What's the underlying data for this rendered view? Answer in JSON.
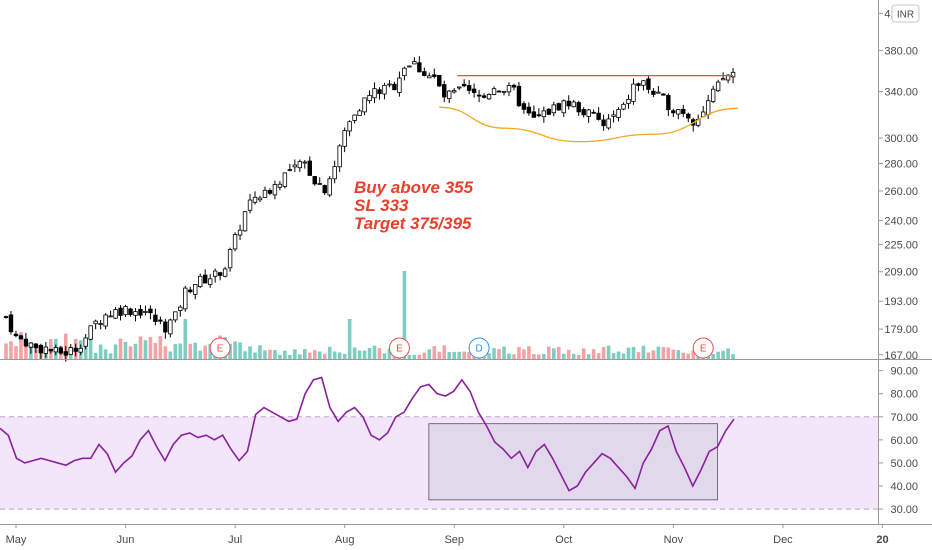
{
  "currency_badge": "INR",
  "annotation": {
    "lines": [
      "Buy above 355",
      "SL 333",
      "Target 375/395"
    ],
    "color": "#e8402d"
  },
  "colors": {
    "up": "#ffffff",
    "down": "#000000",
    "volume_up": "#7ecdc2",
    "volume_down": "#f2a3a6",
    "resistance": "#f04747",
    "cup_curve": "#f5a623",
    "rsi_line": "#8b1fa0",
    "rsi_band": "#f3e6fb",
    "rsi_box": "#dcd3e6"
  },
  "chart_data": [
    {
      "type": "candlestick",
      "title": "",
      "yscale": "log",
      "y_ticks": [
        167,
        179,
        193,
        209,
        225,
        240,
        260,
        280,
        300,
        340,
        380,
        420
      ],
      "y_tick_labels": [
        "167.00",
        "179.00",
        "193.00",
        "209.00",
        "225.00",
        "240.00",
        "260.00",
        "280.00",
        "300.00",
        "340.00",
        "380.00",
        "420.00"
      ],
      "x_ticks": [
        "May",
        "Jun",
        "Jul",
        "Aug",
        "Sep",
        "Oct",
        "Nov",
        "Dec",
        "20"
      ],
      "x_tick_day_index": [
        0,
        22,
        44,
        66,
        88,
        110,
        132,
        154,
        174
      ],
      "close_path": [
        [
          0,
          185
        ],
        [
          2,
          175
        ],
        [
          4,
          173
        ],
        [
          6,
          170
        ],
        [
          8,
          170
        ],
        [
          10,
          168
        ],
        [
          12,
          168
        ],
        [
          14,
          170
        ],
        [
          16,
          175
        ],
        [
          18,
          182
        ],
        [
          20,
          186
        ],
        [
          22,
          188
        ],
        [
          24,
          189
        ],
        [
          26,
          188
        ],
        [
          28,
          188
        ],
        [
          30,
          183
        ],
        [
          32,
          180
        ],
        [
          34,
          185
        ],
        [
          36,
          198
        ],
        [
          38,
          203
        ],
        [
          40,
          205
        ],
        [
          42,
          207
        ],
        [
          44,
          212
        ],
        [
          46,
          228
        ],
        [
          48,
          245
        ],
        [
          50,
          256
        ],
        [
          52,
          258
        ],
        [
          54,
          264
        ],
        [
          56,
          272
        ],
        [
          58,
          276
        ],
        [
          60,
          280
        ],
        [
          62,
          268
        ],
        [
          64,
          262
        ],
        [
          66,
          278
        ],
        [
          68,
          305
        ],
        [
          70,
          322
        ],
        [
          72,
          332
        ],
        [
          74,
          340
        ],
        [
          76,
          342
        ],
        [
          78,
          346
        ],
        [
          80,
          365
        ],
        [
          82,
          366
        ],
        [
          84,
          358
        ],
        [
          86,
          352
        ],
        [
          88,
          335
        ],
        [
          90,
          338
        ],
        [
          92,
          342
        ],
        [
          94,
          336
        ],
        [
          96,
          335
        ],
        [
          98,
          345
        ],
        [
          100,
          342
        ],
        [
          102,
          340
        ],
        [
          104,
          322
        ],
        [
          106,
          315
        ],
        [
          108,
          320
        ],
        [
          110,
          325
        ],
        [
          112,
          330
        ],
        [
          114,
          328
        ],
        [
          116,
          322
        ],
        [
          118,
          318
        ],
        [
          120,
          310
        ],
        [
          122,
          318
        ],
        [
          124,
          325
        ],
        [
          126,
          345
        ],
        [
          128,
          348
        ],
        [
          130,
          338
        ],
        [
          132,
          332
        ],
        [
          134,
          325
        ],
        [
          136,
          323
        ],
        [
          138,
          315
        ],
        [
          140,
          322
        ],
        [
          142,
          338
        ],
        [
          144,
          352
        ],
        [
          146,
          358
        ]
      ],
      "resistance_level": 355,
      "resistance_start_day": 90,
      "resistance_end_day": 146,
      "cup_curve": [
        [
          87,
          326
        ],
        [
          100,
          308
        ],
        [
          115,
          297
        ],
        [
          130,
          303
        ],
        [
          147,
          325
        ]
      ],
      "earnings_markers": [
        {
          "label": "E",
          "day": 43
        },
        {
          "label": "E",
          "day": 79
        },
        {
          "label": "D",
          "day": 95
        },
        {
          "label": "E",
          "day": 140
        }
      ],
      "volume_spike_days": [
        80,
        69,
        36
      ]
    },
    {
      "type": "line",
      "title": "",
      "series": [
        {
          "name": "",
          "values": [
            65,
            62,
            52,
            50,
            51,
            52,
            51,
            50,
            49,
            51,
            52,
            52,
            58,
            54,
            46,
            50,
            53,
            60,
            64,
            57,
            51,
            58,
            62,
            63,
            61,
            62,
            60,
            62,
            56,
            51,
            55,
            71,
            74,
            72,
            70,
            68,
            69,
            80,
            86,
            87,
            74,
            68,
            72,
            74,
            70,
            62,
            60,
            63,
            70,
            72,
            78,
            83,
            84,
            80,
            79,
            81,
            86,
            81,
            72,
            66,
            59,
            56,
            52,
            55,
            48,
            55,
            58,
            52,
            45,
            38,
            40,
            46,
            50,
            54,
            52,
            48,
            44,
            39,
            50,
            56,
            64,
            66,
            55,
            48,
            40,
            47,
            55,
            57,
            64,
            69
          ]
        }
      ],
      "y_ticks": [
        30,
        40,
        50,
        60,
        70,
        80,
        90
      ],
      "y_tick_labels": [
        "30.00",
        "40.00",
        "50.00",
        "60.00",
        "70.00",
        "80.00",
        "90.00"
      ],
      "ylim": [
        27,
        92
      ],
      "overbought": 70,
      "oversold": 30,
      "highlight_box": {
        "start_index": 52,
        "end_index": 87,
        "low": 34,
        "high": 67
      }
    }
  ]
}
